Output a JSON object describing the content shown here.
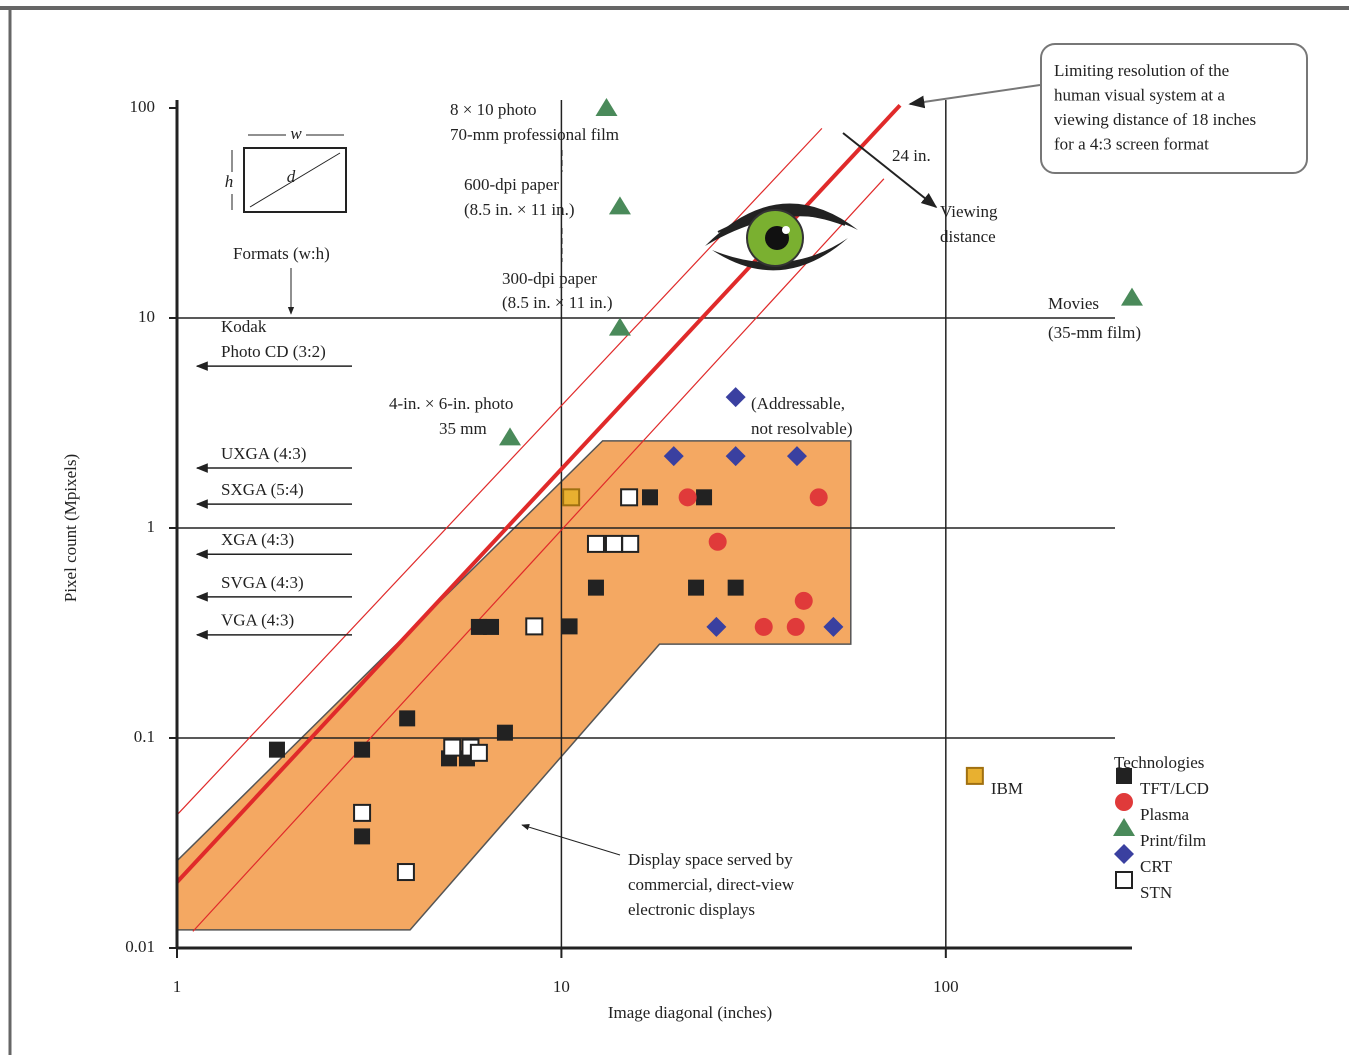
{
  "chart_data": {
    "type": "scatter",
    "xlabel": "Image diagonal  (inches)",
    "ylabel": "Pixel count  (Mpixels)",
    "xlim": [
      1,
      320
    ],
    "ylim": [
      0.01,
      100
    ],
    "xticks": [
      1,
      10,
      100
    ],
    "yticks": [
      0.01,
      0.1,
      1,
      10,
      100
    ],
    "log_x": true,
    "log_y": true,
    "grid": true,
    "legend_title": "Technologies",
    "legend_loc": "lower right",
    "series": [
      {
        "name": "TFT/LCD",
        "color": "#222222",
        "marker": "square",
        "x": [
          1.82,
          3.03,
          3.03,
          3.97,
          5.1,
          5.68,
          6.1,
          6.56,
          7.13,
          10.5,
          12.3,
          17,
          23.5,
          22.4,
          28.4
        ],
        "y": [
          0.088,
          0.088,
          0.034,
          0.124,
          0.08,
          0.08,
          0.338,
          0.338,
          0.106,
          0.34,
          0.52,
          1.4,
          1.4,
          0.52,
          0.52
        ]
      },
      {
        "name": "Plasma",
        "color": "#e03a3a",
        "marker": "circle",
        "x": [
          21.3,
          25.5,
          46.7,
          42.7,
          33.6,
          40.7
        ],
        "y": [
          1.4,
          0.86,
          1.4,
          0.45,
          0.338,
          0.338
        ]
      },
      {
        "name": "Print/film",
        "color": "#4a8a5a",
        "marker": "triangle",
        "x": [
          13.1,
          14.2,
          14.2,
          7.35,
          305
        ],
        "y": [
          100,
          34,
          9,
          2.7,
          12.5
        ]
      },
      {
        "name": "CRT",
        "color": "#3a40a0",
        "marker": "diamond",
        "x": [
          28.4,
          19.6,
          28.4,
          41,
          25.3,
          51
        ],
        "y": [
          4.2,
          2.2,
          2.2,
          2.2,
          0.338,
          0.338
        ]
      },
      {
        "name": "STN",
        "color": "#ffffff",
        "marker": "square",
        "x": [
          3.03,
          3.94,
          5.2,
          5.8,
          6.1,
          8.5,
          15,
          12.3,
          13.7,
          15.1
        ],
        "y": [
          0.044,
          0.023,
          0.09,
          0.09,
          0.085,
          0.34,
          1.4,
          0.84,
          0.84,
          0.84
        ]
      },
      {
        "name": "IBM",
        "color": "#e8b030",
        "marker": "square",
        "legend": false,
        "x": [
          10.6,
          119
        ],
        "y": [
          1.4,
          0.066
        ]
      }
    ],
    "region": {
      "color": "#f4a862",
      "x": [
        1,
        4.04,
        18,
        56.6,
        56.6,
        12.8,
        1
      ],
      "y": [
        0.0122,
        0.0122,
        0.28,
        0.28,
        2.6,
        2.6,
        0.026
      ]
    },
    "reference_lines": [
      {
        "color": "#e02a2a",
        "style": "thick",
        "x": [
          1,
          76
        ],
        "y": [
          0.0206,
          103
        ]
      },
      {
        "color": "#e02a2a",
        "style": "thin",
        "x": [
          1,
          47.6
        ],
        "y": [
          0.043,
          80
        ]
      },
      {
        "color": "#e02a2a",
        "style": "thin",
        "x": [
          1.1,
          69
        ],
        "y": [
          0.012,
          46
        ]
      }
    ],
    "formats_title": "Formats (w:h)",
    "formats": [
      {
        "lines": [
          "Kodak",
          "Photo CD (3:2)"
        ],
        "value": 5.9
      },
      {
        "lines": [
          "UXGA (4:3)"
        ],
        "value": 1.93
      },
      {
        "lines": [
          "SXGA (5:4)"
        ],
        "value": 1.3
      },
      {
        "lines": [
          "XGA (4:3)"
        ],
        "value": 0.75
      },
      {
        "lines": [
          "SVGA (4:3)"
        ],
        "value": 0.47
      },
      {
        "lines": [
          "VGA (4:3)"
        ],
        "value": 0.31
      }
    ],
    "annotations": [
      {
        "lines": [
          "8 × 10 photo",
          "70-mm professional film"
        ]
      },
      {
        "lines": [
          "600-dpi paper",
          "(8.5 in. × 11 in.)"
        ]
      },
      {
        "lines": [
          "300-dpi paper",
          "(8.5 in. × 11 in.)"
        ]
      },
      {
        "lines": [
          "4-in. × 6-in. photo",
          "35 mm"
        ]
      },
      {
        "lines": [
          "Movies",
          "(35-mm film)"
        ]
      },
      {
        "lines": [
          "(Addressable,",
          "not resolvable)"
        ]
      },
      {
        "lines": [
          "Display space served by",
          "commercial, direct-view",
          "electronic displays"
        ]
      },
      {
        "lines": [
          "Limiting resolution of the",
          "human visual system at a",
          "viewing distance of 18 inches",
          "for a 4:3 screen format"
        ]
      },
      {
        "lines": [
          "24 in."
        ]
      },
      {
        "lines": [
          "Viewing",
          "distance"
        ]
      }
    ],
    "inset_labels": [
      "w",
      "h",
      "d"
    ]
  }
}
